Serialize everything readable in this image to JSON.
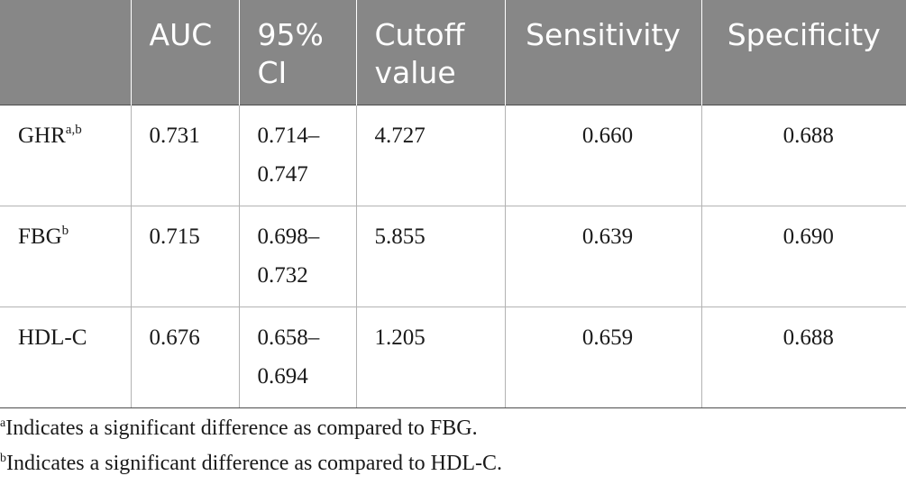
{
  "table": {
    "headers": {
      "metric": "",
      "auc": "AUC",
      "ci_line1": "95%",
      "ci_line2": "CI",
      "cutoff_line1": "Cutoff",
      "cutoff_line2": "value",
      "sensitivity": "Sensitivity",
      "specificity": "Specificity"
    },
    "rows": [
      {
        "name": "GHR",
        "sup": "a,b",
        "auc": "0.731",
        "ci_low": "0.714–",
        "ci_high": "0.747",
        "cutoff": "4.727",
        "sensitivity": "0.660",
        "specificity": "0.688"
      },
      {
        "name": "FBG",
        "sup": "b",
        "auc": "0.715",
        "ci_low": "0.698–",
        "ci_high": "0.732",
        "cutoff": "5.855",
        "sensitivity": "0.639",
        "specificity": "0.690"
      },
      {
        "name": "HDL-C",
        "sup": "",
        "auc": "0.676",
        "ci_low": "0.658–",
        "ci_high": "0.694",
        "cutoff": "1.205",
        "sensitivity": "0.659",
        "specificity": "0.688"
      }
    ]
  },
  "footnotes": [
    {
      "mark": "a",
      "text": "Indicates a significant difference as compared to FBG."
    },
    {
      "mark": "b",
      "text": "Indicates a significant difference as compared to HDL-C."
    }
  ],
  "colors": {
    "header_bg": "#878787",
    "header_text": "#ffffff",
    "rule": "#b3b3b3",
    "text": "#1a1a1a"
  }
}
